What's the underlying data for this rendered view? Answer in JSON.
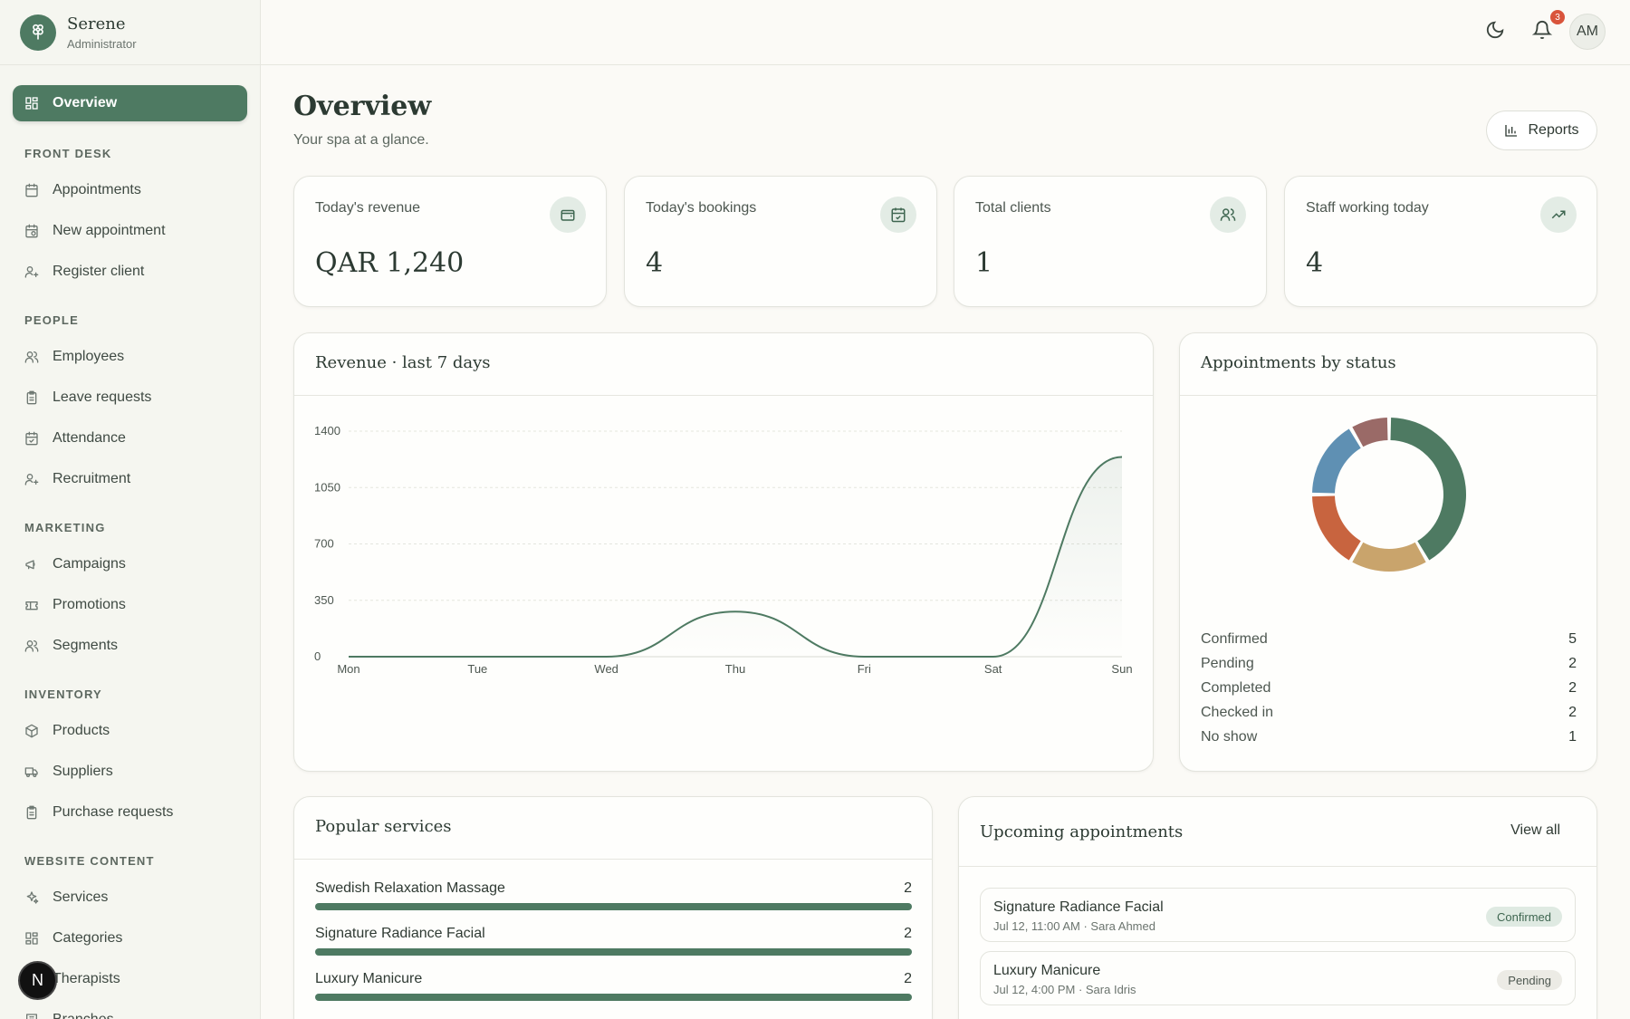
{
  "brand": {
    "name": "Serene",
    "role": "Administrator"
  },
  "sidebar": {
    "active": {
      "label": "Overview",
      "icon": "dashboard-icon"
    },
    "sections": [
      {
        "title": "FRONT DESK",
        "items": [
          {
            "label": "Appointments",
            "icon": "calendar-icon"
          },
          {
            "label": "New appointment",
            "icon": "calendar-clock-icon"
          },
          {
            "label": "Register client",
            "icon": "user-plus-icon"
          }
        ]
      },
      {
        "title": "PEOPLE",
        "items": [
          {
            "label": "Employees",
            "icon": "users-icon"
          },
          {
            "label": "Leave requests",
            "icon": "clipboard-icon"
          },
          {
            "label": "Attendance",
            "icon": "calendar-check-icon"
          },
          {
            "label": "Recruitment",
            "icon": "user-plus-icon"
          }
        ]
      },
      {
        "title": "MARKETING",
        "items": [
          {
            "label": "Campaigns",
            "icon": "megaphone-icon"
          },
          {
            "label": "Promotions",
            "icon": "ticket-icon"
          },
          {
            "label": "Segments",
            "icon": "users-icon"
          }
        ]
      },
      {
        "title": "INVENTORY",
        "items": [
          {
            "label": "Products",
            "icon": "package-icon"
          },
          {
            "label": "Suppliers",
            "icon": "truck-icon"
          },
          {
            "label": "Purchase requests",
            "icon": "clipboard-icon"
          }
        ]
      },
      {
        "title": "WEBSITE CONTENT",
        "items": [
          {
            "label": "Services",
            "icon": "sparkles-icon"
          },
          {
            "label": "Categories",
            "icon": "grid-icon"
          },
          {
            "label": "Therapists",
            "icon": "user-icon"
          },
          {
            "label": "Branches",
            "icon": "building-icon"
          }
        ]
      }
    ]
  },
  "topbar": {
    "notification_count": "3",
    "avatar_initials": "AM",
    "next_badge": "N"
  },
  "header": {
    "title": "Overview",
    "subtitle": "Your spa at a glance.",
    "reports_label": "Reports"
  },
  "stats": [
    {
      "label": "Today's revenue",
      "value": "QAR 1,240",
      "icon": "wallet-icon"
    },
    {
      "label": "Today's bookings",
      "value": "4",
      "icon": "calendar-check-icon"
    },
    {
      "label": "Total clients",
      "value": "1",
      "icon": "users-icon"
    },
    {
      "label": "Staff working today",
      "value": "4",
      "icon": "trending-up-icon"
    }
  ],
  "revenue_panel": {
    "title": "Revenue · last 7 days"
  },
  "status_panel": {
    "title": "Appointments by status"
  },
  "chart_data": [
    {
      "type": "area",
      "title": "Revenue · last 7 days",
      "categories": [
        "Mon",
        "Tue",
        "Wed",
        "Thu",
        "Fri",
        "Sat",
        "Sun"
      ],
      "values": [
        0,
        0,
        0,
        280,
        0,
        0,
        1240
      ],
      "y_ticks": [
        "0",
        "350",
        "700",
        "1050",
        "1400"
      ],
      "ylim": [
        0,
        1400
      ],
      "grid": true,
      "line_color": "#4e7a62"
    },
    {
      "type": "pie",
      "title": "Appointments by status",
      "labels": [
        "Confirmed",
        "Pending",
        "Completed",
        "Checked in",
        "No show"
      ],
      "values": [
        5,
        2,
        2,
        2,
        1
      ],
      "colors": [
        "#4e7a62",
        "#c9a46c",
        "#c8643f",
        "#5f90b3",
        "#9a6a67"
      ]
    }
  ],
  "popular_services": {
    "title": "Popular services",
    "items": [
      {
        "name": "Swedish Relaxation Massage",
        "count": "2",
        "share": 1.0
      },
      {
        "name": "Signature Radiance Facial",
        "count": "2",
        "share": 1.0
      },
      {
        "name": "Luxury Manicure",
        "count": "2",
        "share": 1.0
      }
    ]
  },
  "upcoming": {
    "title": "Upcoming appointments",
    "view_all": "View all",
    "items": [
      {
        "service": "Signature Radiance Facial",
        "meta": "Jul 12, 11:00 AM · Sara Ahmed",
        "status": "Confirmed"
      },
      {
        "service": "Luxury Manicure",
        "meta": "Jul 12, 4:00 PM · Sara Idris",
        "status": "Pending"
      }
    ]
  }
}
